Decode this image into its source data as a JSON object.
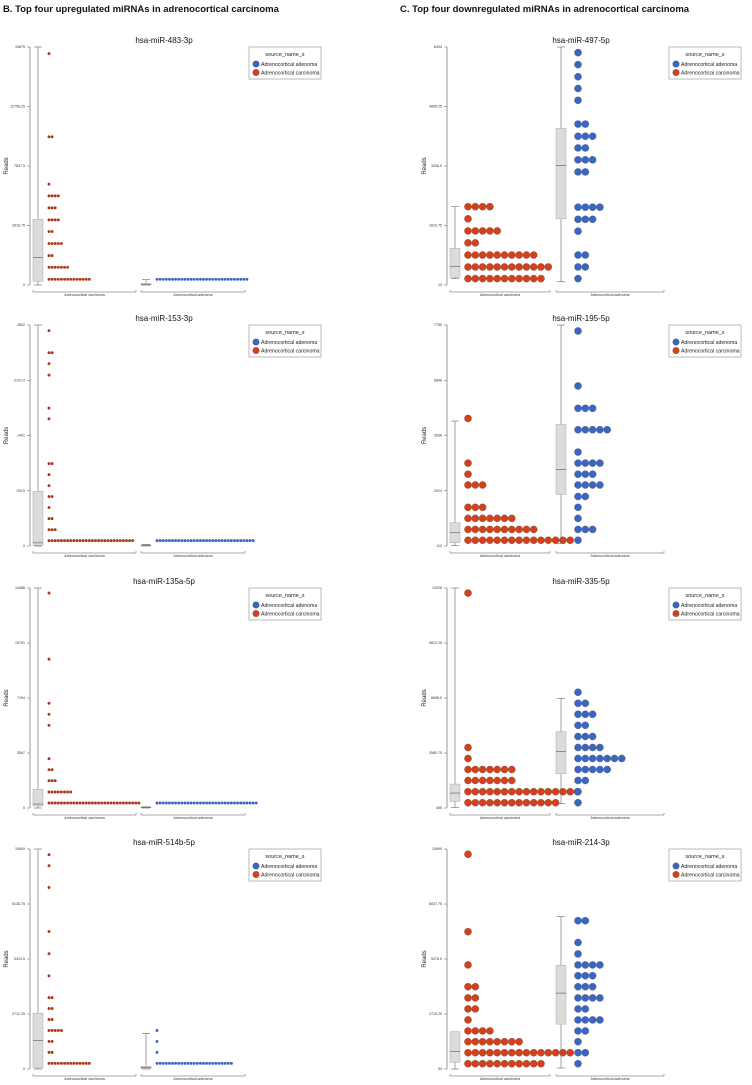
{
  "headers": {
    "left": "B. Top four upregulated miRNAs in adrenocortical carcinoma",
    "right": "C. Top four downregulated miRNAs in adrenocortical carcinoma"
  },
  "colors": {
    "adenoma": "#3a66c2",
    "carcinoma": "#d2401c",
    "carcinoma_small": "#a8391b",
    "box_fill": "#dcdcdc"
  },
  "chart_data": [
    {
      "type": "box+dotplot",
      "title": "hsa-miR-483-3p",
      "ylabel": "Reads",
      "ylim": [
        0,
        15675
      ],
      "yticks": [
        "0",
        "3918.75",
        "7837.5",
        "11756.25",
        "15675"
      ],
      "legend": {
        "title": "source_name_s",
        "items": [
          "Adrenocortical adenoma",
          "Adrenocortical carcinoma"
        ],
        "placement": "top-right"
      },
      "groups": [
        {
          "label": "Adrenocortical carcinoma",
          "series": "carcinoma",
          "box": {
            "min": 0,
            "q1": 240,
            "median": 1800,
            "q3": 4330,
            "max": 15675
          },
          "dots": [
            [
              15240,
              1
            ],
            [
              9760,
              2
            ],
            [
              6640,
              1
            ],
            [
              5870,
              4
            ],
            [
              5080,
              3
            ],
            [
              4290,
              4
            ],
            [
              3520,
              2
            ],
            [
              2730,
              5
            ],
            [
              1935,
              2
            ],
            [
              1165,
              7
            ],
            [
              375,
              14
            ]
          ]
        },
        {
          "label": "Adrenocortical adenoma",
          "series": "adenoma",
          "box": {
            "min": 0,
            "q1": 0,
            "median": 50,
            "q3": 100,
            "max": 350
          },
          "dots": [
            [
              375,
              30
            ]
          ]
        }
      ]
    },
    {
      "type": "box+dotplot",
      "title": "hsa-miR-153-3p",
      "ylabel": "Reads",
      "ylim": [
        0,
        2802
      ],
      "yticks": [
        "0",
        "700.5",
        "1401",
        "2101.5",
        "2802"
      ],
      "legend": {
        "title": "source_name_s",
        "items": [
          "Adrenocortical adenoma",
          "Adrenocortical carcinoma"
        ],
        "placement": "top-right"
      },
      "groups": [
        {
          "label": "Adrenocortical carcinoma",
          "series": "carcinoma",
          "box": {
            "min": 0,
            "q1": 10,
            "median": 40,
            "q3": 694,
            "max": 2802
          },
          "dots": [
            [
              2730,
              1
            ],
            [
              2451,
              2
            ],
            [
              2312,
              1
            ],
            [
              2167,
              1
            ],
            [
              1748,
              1
            ],
            [
              1613,
              1
            ],
            [
              1045,
              2
            ],
            [
              905,
              1
            ],
            [
              765,
              1
            ],
            [
              627,
              2
            ],
            [
              487,
              1
            ],
            [
              347,
              2
            ],
            [
              207,
              3
            ],
            [
              68,
              28
            ]
          ]
        },
        {
          "label": "Adrenocortical adenoma",
          "series": "adenoma",
          "box": {
            "min": 0,
            "q1": 5,
            "median": 10,
            "q3": 15,
            "max": 20
          },
          "dots": [
            [
              68,
              32
            ]
          ]
        }
      ]
    },
    {
      "type": "box+dotplot",
      "title": "hsa-miR-135a-5p",
      "ylabel": "Reads",
      "ylim": [
        0,
        14388
      ],
      "yticks": [
        "0",
        "3597",
        "7194",
        "10791",
        "14388"
      ],
      "legend": {
        "title": "source_name_s",
        "items": [
          "Adrenocortical adenoma",
          "Adrenocortical carcinoma"
        ],
        "placement": "top-right"
      },
      "groups": [
        {
          "label": "Adrenocortical carcinoma",
          "series": "carcinoma",
          "box": {
            "min": 0,
            "q1": 130,
            "median": 260,
            "q3": 1220,
            "max": 14388
          },
          "dots": [
            [
              14061,
              1
            ],
            [
              9730,
              1
            ],
            [
              6850,
              1
            ],
            [
              6130,
              1
            ],
            [
              5410,
              1
            ],
            [
              3225,
              1
            ],
            [
              2506,
              2
            ],
            [
              1788,
              3
            ],
            [
              1047,
              8
            ],
            [
              327,
              30
            ]
          ]
        },
        {
          "label": "Adrenocortical adenoma",
          "series": "adenoma",
          "box": {
            "min": 0,
            "q1": 20,
            "median": 40,
            "q3": 60,
            "max": 80
          },
          "dots": [
            [
              327,
              33
            ]
          ]
        }
      ]
    },
    {
      "type": "box+dotplot",
      "title": "hsa-miR-514b-5p",
      "ylabel": "Reads",
      "ylim": [
        0,
        10849
      ],
      "yticks": [
        "0",
        "2712.25",
        "5424.5",
        "8136.75",
        "10849"
      ],
      "legend": {
        "title": "source_name_s",
        "items": [
          "Adrenocortical adenoma",
          "Adrenocortical carcinoma"
        ],
        "placement": "top-right"
      },
      "groups": [
        {
          "label": "Adrenocortical carcinoma",
          "series": "carcinoma",
          "box": {
            "min": 0,
            "q1": 50,
            "median": 1409,
            "q3": 2754,
            "max": 10849
          },
          "dots": [
            [
              10570,
              1
            ],
            [
              10025,
              1
            ],
            [
              8950,
              1
            ],
            [
              6781,
              1
            ],
            [
              5686,
              1
            ],
            [
              4597,
              1
            ],
            [
              3520,
              2
            ],
            [
              2983,
              2
            ],
            [
              2443,
              2
            ],
            [
              1901,
              5
            ],
            [
              1360,
              2
            ],
            [
              820,
              2
            ],
            [
              280,
              14
            ]
          ]
        },
        {
          "label": "Adrenocortical adenoma",
          "series": "adenoma",
          "box": {
            "min": 0,
            "q1": 20,
            "median": 80,
            "q3": 130,
            "max": 1760
          },
          "dots": [
            [
              1901,
              1
            ],
            [
              1360,
              1
            ],
            [
              820,
              1
            ],
            [
              280,
              25
            ]
          ]
        }
      ]
    },
    {
      "type": "box+dotplot",
      "title": "hsa-miR-497-5p",
      "ylabel": "Reads",
      "ylim": [
        13,
        6404
      ],
      "yticks": [
        "13",
        "1610.75",
        "3208.5",
        "4806.25",
        "6404"
      ],
      "legend": {
        "title": "source_name_s",
        "items": [
          "Adrenocortical adenoma",
          "Adrenocortical carcinoma"
        ],
        "placement": "top-right"
      },
      "groups": [
        {
          "label": "Adrenocortical carcinoma",
          "series": "carcinoma",
          "box": {
            "min": 184,
            "q1": 218,
            "median": 516,
            "q3": 998,
            "max": 2116
          },
          "dots": [
            [
              2116,
              4
            ],
            [
              1790,
              1
            ],
            [
              1465,
              5
            ],
            [
              1144,
              2
            ],
            [
              818,
              10
            ],
            [
              497,
              12
            ],
            [
              184,
              11
            ]
          ]
        },
        {
          "label": "Adrenocortical adenoma",
          "series": "adenoma",
          "box": {
            "min": 100,
            "q1": 1790,
            "median": 3221,
            "q3": 4218,
            "max": 6404
          },
          "dots": [
            [
              6252,
              1
            ],
            [
              5931,
              1
            ],
            [
              5605,
              1
            ],
            [
              5290,
              1
            ],
            [
              4973,
              1
            ],
            [
              4334,
              2
            ],
            [
              4007,
              3
            ],
            [
              3694,
              2
            ],
            [
              3374,
              3
            ],
            [
              3049,
              2
            ],
            [
              2103,
              4
            ],
            [
              1777,
              3
            ],
            [
              1457,
              1
            ],
            [
              818,
              2
            ],
            [
              497,
              2
            ],
            [
              184,
              1
            ]
          ]
        }
      ]
    },
    {
      "type": "box+dotplot",
      "title": "hsa-miR-195-5p",
      "ylabel": "Reads",
      "ylim": [
        112,
        7760
      ],
      "yticks": [
        "112",
        "2024",
        "3936",
        "5848",
        "7760"
      ],
      "legend": {
        "title": "source_name_s",
        "items": [
          "Adrenocortical adenoma",
          "Adrenocortical carcinoma"
        ],
        "placement": "top-right"
      },
      "groups": [
        {
          "label": "Adrenocortical carcinoma",
          "series": "carcinoma",
          "box": {
            "min": 128,
            "q1": 227,
            "median": 571,
            "q3": 915,
            "max": 4437
          },
          "dots": [
            [
              4525,
              1
            ],
            [
              2980,
              1
            ],
            [
              2598,
              1
            ],
            [
              2223,
              3
            ],
            [
              1450,
              3
            ],
            [
              1068,
              7
            ],
            [
              686,
              10
            ],
            [
              311,
              15
            ]
          ]
        },
        {
          "label": "Adrenocortical adenoma",
          "series": "adenoma",
          "box": {
            "min": 204,
            "q1": 1894,
            "median": 2759,
            "q3": 4318,
            "max": 7760
          },
          "dots": [
            [
              7553,
              1
            ],
            [
              5649,
              1
            ],
            [
              4877,
              3
            ],
            [
              4135,
              5
            ],
            [
              3362,
              1
            ],
            [
              2980,
              4
            ],
            [
              2598,
              3
            ],
            [
              2223,
              4
            ],
            [
              1825,
              2
            ],
            [
              1450,
              1
            ],
            [
              1068,
              1
            ],
            [
              686,
              3
            ],
            [
              311,
              1
            ]
          ]
        }
      ]
    },
    {
      "type": "box+dotplot",
      "title": "hsa-miR-335-5p",
      "ylabel": "Reads",
      "ylim": [
        465,
        12928
      ],
      "yticks": [
        "465",
        "3580.75",
        "6696.5",
        "9812.25",
        "12928"
      ],
      "legend": {
        "title": "source_name_s",
        "items": [
          "Adrenocortical adenoma",
          "Adrenocortical carcinoma"
        ],
        "placement": "top-right"
      },
      "groups": [
        {
          "label": "Adrenocortical carcinoma",
          "series": "carcinoma",
          "box": {
            "min": 500,
            "q1": 839,
            "median": 1312,
            "q3": 1823,
            "max": 12928
          },
          "dots": [
            [
              12641,
              1
            ],
            [
              3893,
              1
            ],
            [
              3270,
              1
            ],
            [
              2646,
              7
            ],
            [
              2023,
              7
            ],
            [
              1387,
              16
            ],
            [
              764,
              13
            ]
          ]
        },
        {
          "label": "Adrenocortical adenoma",
          "series": "adenoma",
          "box": {
            "min": 715,
            "q1": 2407,
            "median": 3669,
            "q3": 4790,
            "max": 6680
          },
          "dots": [
            [
              7021,
              1
            ],
            [
              6397,
              2
            ],
            [
              5774,
              3
            ],
            [
              5150,
              2
            ],
            [
              4515,
              3
            ],
            [
              3893,
              4
            ],
            [
              3270,
              7
            ],
            [
              2646,
              5
            ],
            [
              2023,
              2
            ],
            [
              1387,
              1
            ],
            [
              764,
              1
            ]
          ]
        }
      ]
    },
    {
      "type": "box+dotplot",
      "title": "hsa-miR-214-3p",
      "ylabel": "Reads",
      "ylim": [
        54,
        10699
      ],
      "yticks": [
        "54",
        "2715.25",
        "5376.5",
        "8037.75",
        "10699"
      ],
      "legend": {
        "title": "source_name_s",
        "items": [
          "Adrenocortical adenoma",
          "Adrenocortical carcinoma"
        ],
        "placement": "top-right"
      },
      "groups": [
        {
          "label": "Adrenocortical carcinoma",
          "series": "carcinoma",
          "box": {
            "min": 54,
            "q1": 374,
            "median": 895,
            "q3": 1853,
            "max": 1853
          },
          "dots": [
            [
              10444,
              1
            ],
            [
              6697,
              1
            ],
            [
              5089,
              1
            ],
            [
              4035,
              2
            ],
            [
              3493,
              2
            ],
            [
              2960,
              2
            ],
            [
              2428,
              1
            ],
            [
              1896,
              4
            ],
            [
              1374,
              8
            ],
            [
              842,
              15
            ],
            [
              309,
              11
            ]
          ]
        },
        {
          "label": "Adrenocortical adenoma",
          "series": "adenoma",
          "box": {
            "min": 102,
            "q1": 2226,
            "median": 3727,
            "q3": 5068,
            "max": 7423
          },
          "dots": [
            [
              7229,
              2
            ],
            [
              6175,
              1
            ],
            [
              5622,
              1
            ],
            [
              5089,
              4
            ],
            [
              4567,
              3
            ],
            [
              4035,
              3
            ],
            [
              3493,
              4
            ],
            [
              2960,
              2
            ],
            [
              2428,
              4
            ],
            [
              1896,
              2
            ],
            [
              1374,
              1
            ],
            [
              842,
              2
            ],
            [
              309,
              1
            ]
          ]
        }
      ]
    }
  ]
}
